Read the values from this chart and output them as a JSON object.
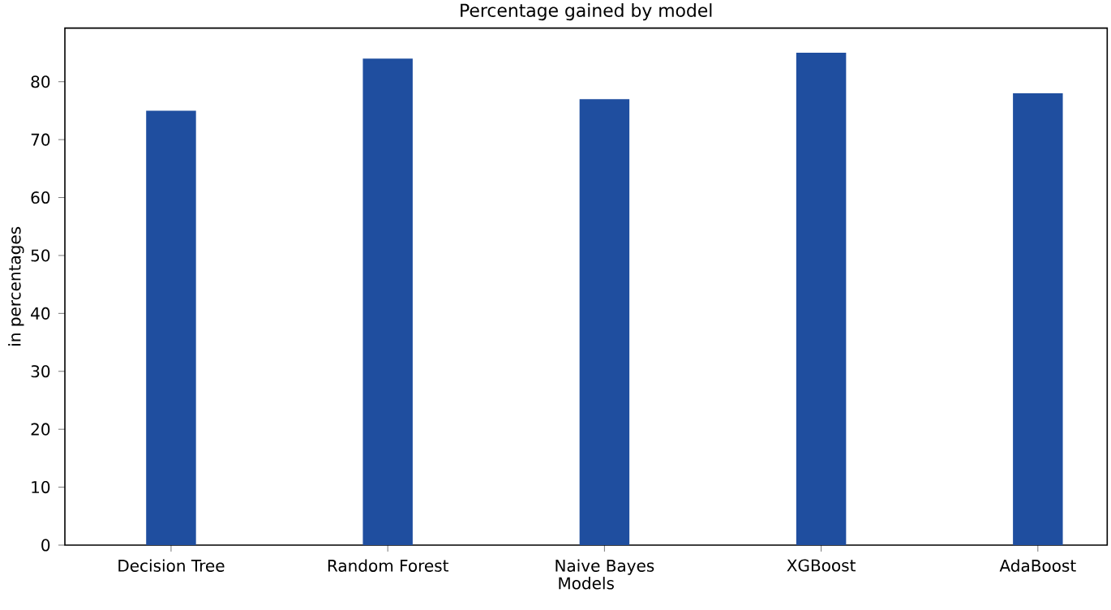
{
  "chart_data": {
    "type": "bar",
    "title": "Percentage gained by model",
    "xlabel": "Models",
    "ylabel": "in percentages",
    "categories": [
      "Decision Tree",
      "Random Forest",
      "Naive Bayes",
      "XGBoost",
      "AdaBoost"
    ],
    "values": [
      75,
      84,
      77,
      85,
      78
    ],
    "color": "#1f4e9f",
    "ylim": [
      0,
      89.25
    ],
    "yticks": [
      0,
      10,
      20,
      30,
      40,
      50,
      60,
      70,
      80
    ],
    "grid": false
  }
}
